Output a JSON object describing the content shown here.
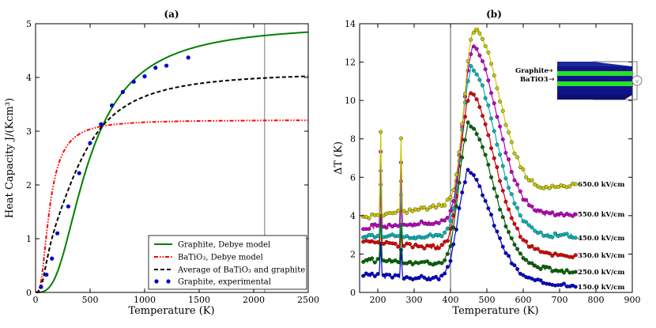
{
  "chart_data": [
    {
      "type": "line",
      "panel_label": "(a)",
      "xlabel": "Temperature (K)",
      "ylabel": "Heat Capacity J/(Kcm³)",
      "xlim": [
        0,
        2500
      ],
      "ylim": [
        0,
        5
      ],
      "xticks": [
        0,
        500,
        1000,
        1500,
        2000,
        2500
      ],
      "yticks": [
        0,
        1,
        2,
        3,
        4,
        5
      ],
      "vline_x": 2100,
      "series": [
        {
          "name": "graphite",
          "label": "Graphite, Debye model",
          "color": "#008000",
          "style": "solid",
          "model": "debye",
          "amplitude": 5.0,
          "theta": 2000
        },
        {
          "name": "batio3",
          "label": "BaTiO₃, Debye model",
          "color": "#ff0000",
          "style": "dashdot",
          "model": "debye",
          "amplitude": 3.21,
          "theta": 530
        },
        {
          "name": "average",
          "label": "Average of BaTiO₃ and graphite",
          "color": "#000000",
          "style": "dashed",
          "model": "average"
        }
      ],
      "experimental": {
        "label": "Graphite, experimental",
        "color": "#0000cc",
        "x": [
          50,
          100,
          150,
          200,
          300,
          400,
          500,
          600,
          700,
          800,
          900,
          1000,
          1100,
          1200,
          1400
        ],
        "y": [
          0.1,
          0.33,
          0.63,
          1.1,
          1.6,
          2.22,
          2.78,
          3.13,
          3.48,
          3.73,
          3.92,
          4.02,
          4.18,
          4.22,
          4.37
        ]
      }
    },
    {
      "type": "line",
      "panel_label": "(b)",
      "xlabel": "Temperature (K)",
      "ylabel": "ΔT (K)",
      "xlim": [
        150,
        900
      ],
      "ylim": [
        0,
        14
      ],
      "xticks": [
        200,
        300,
        400,
        500,
        600,
        700,
        800,
        900
      ],
      "yticks": [
        0,
        2,
        4,
        6,
        8,
        10,
        12,
        14
      ],
      "vline_x": 400,
      "series": [
        {
          "field": "150.0 kV/cm",
          "color": "#0000cc",
          "base_start": 0.9,
          "base_end": 0.4,
          "peak": 6.3,
          "peak_x": 443,
          "step": 1.7
        },
        {
          "field": "250.0 kV/cm",
          "color": "#006600",
          "base_start": 1.7,
          "base_end": 1.1,
          "peak": 8.8,
          "peak_x": 447,
          "step": 2.4
        },
        {
          "field": "350.0 kV/cm",
          "color": "#dd0000",
          "base_start": 2.6,
          "base_end": 1.9,
          "peak": 10.4,
          "peak_x": 451,
          "step": 3.0
        },
        {
          "field": "450.0 kV/cm",
          "color": "#00b3b3",
          "base_start": 2.9,
          "base_end": 2.95,
          "peak": 11.7,
          "peak_x": 455,
          "step": 3.4
        },
        {
          "field": "550.0 kV/cm",
          "color": "#bb00bb",
          "base_start": 3.4,
          "base_end": 4.1,
          "peak": 12.8,
          "peak_x": 460,
          "step": 3.9
        },
        {
          "field": "650.0 kV/cm",
          "color": "#c8c800",
          "base_start": 3.9,
          "base_end": 5.6,
          "peak": 13.8,
          "peak_x": 465,
          "step": 4.4
        }
      ],
      "inset": {
        "graphite_label": "Graphite",
        "batio3_label": "BaTiO3"
      }
    }
  ]
}
